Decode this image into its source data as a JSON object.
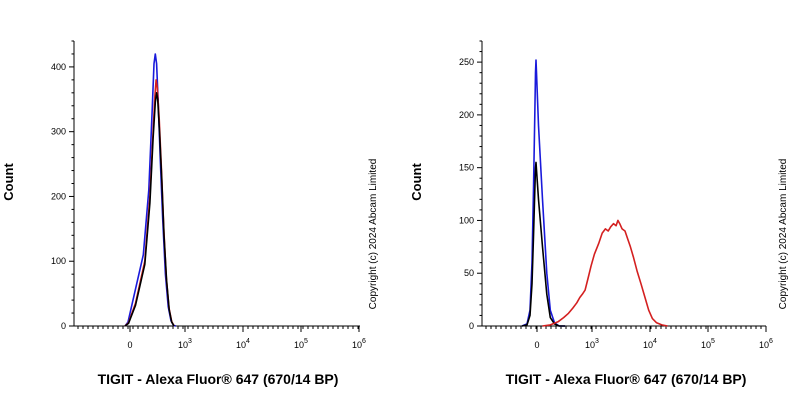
{
  "chart_data": [
    {
      "type": "line",
      "title": "",
      "xlabel": "TIGIT - Alexa Fluor® 647 (670/14 BP)",
      "ylabel": "Count",
      "copyright": "Copyright (c) 2024 Abcam Limited",
      "x_scale": "biexponential",
      "x_ticks": [
        {
          "value": 0,
          "base": "0",
          "exp": ""
        },
        {
          "value": 1000,
          "base": "10",
          "exp": "3"
        },
        {
          "value": 10000,
          "base": "10",
          "exp": "4"
        },
        {
          "value": 100000,
          "base": "10",
          "exp": "5"
        },
        {
          "value": 1000000,
          "base": "10",
          "exp": "6"
        }
      ],
      "y_ticks": [
        0,
        100,
        200,
        300,
        400
      ],
      "ylim": [
        0,
        440
      ],
      "series": [
        {
          "name": "blue",
          "color": "#1a1adb",
          "points": [
            [
              -100,
              0
            ],
            [
              -40,
              6
            ],
            [
              10,
              40
            ],
            [
              60,
              110
            ],
            [
              100,
              210
            ],
            [
              130,
              330
            ],
            [
              150,
              405
            ],
            [
              165,
              420
            ],
            [
              180,
              405
            ],
            [
              200,
              350
            ],
            [
              230,
              260
            ],
            [
              270,
              165
            ],
            [
              320,
              80
            ],
            [
              380,
              30
            ],
            [
              450,
              8
            ],
            [
              520,
              1
            ],
            [
              600,
              0
            ]
          ]
        },
        {
          "name": "red",
          "color": "#d42020",
          "points": [
            [
              -100,
              0
            ],
            [
              -30,
              5
            ],
            [
              20,
              35
            ],
            [
              70,
              100
            ],
            [
              110,
              200
            ],
            [
              140,
              300
            ],
            [
              160,
              355
            ],
            [
              175,
              380
            ],
            [
              190,
              368
            ],
            [
              215,
              320
            ],
            [
              250,
              240
            ],
            [
              290,
              150
            ],
            [
              340,
              75
            ],
            [
              400,
              28
            ],
            [
              470,
              7
            ],
            [
              540,
              0
            ]
          ]
        },
        {
          "name": "black",
          "color": "#000000",
          "points": [
            [
              -100,
              0
            ],
            [
              -30,
              4
            ],
            [
              20,
              32
            ],
            [
              70,
              95
            ],
            [
              110,
              190
            ],
            [
              140,
              290
            ],
            [
              165,
              345
            ],
            [
              180,
              360
            ],
            [
              195,
              350
            ],
            [
              220,
              300
            ],
            [
              255,
              225
            ],
            [
              295,
              140
            ],
            [
              345,
              70
            ],
            [
              405,
              25
            ],
            [
              470,
              6
            ],
            [
              540,
              0
            ]
          ]
        }
      ]
    },
    {
      "type": "line",
      "title": "",
      "xlabel": "TIGIT - Alexa Fluor® 647 (670/14 BP)",
      "ylabel": "Count",
      "copyright": "Copyright (c) 2024 Abcam Limited",
      "x_scale": "biexponential",
      "x_ticks": [
        {
          "value": 0,
          "base": "0",
          "exp": ""
        },
        {
          "value": 1000,
          "base": "10",
          "exp": "3"
        },
        {
          "value": 10000,
          "base": "10",
          "exp": "4"
        },
        {
          "value": 100000,
          "base": "10",
          "exp": "5"
        },
        {
          "value": 1000000,
          "base": "10",
          "exp": "6"
        }
      ],
      "y_ticks": [
        0,
        50,
        100,
        150,
        200,
        250
      ],
      "ylim": [
        0,
        270
      ],
      "series": [
        {
          "name": "blue",
          "color": "#1a1adb",
          "points": [
            [
              -300,
              0
            ],
            [
              -200,
              2
            ],
            [
              -140,
              15
            ],
            [
              -100,
              60
            ],
            [
              -70,
              130
            ],
            [
              -45,
              200
            ],
            [
              -30,
              240
            ],
            [
              -20,
              252
            ],
            [
              -10,
              240
            ],
            [
              5,
              190
            ],
            [
              20,
              120
            ],
            [
              40,
              50
            ],
            [
              60,
              15
            ],
            [
              90,
              3
            ],
            [
              130,
              0
            ],
            [
              200,
              0
            ]
          ]
        },
        {
          "name": "black",
          "color": "#000000",
          "points": [
            [
              -300,
              0
            ],
            [
              -200,
              1
            ],
            [
              -140,
              10
            ],
            [
              -100,
              40
            ],
            [
              -70,
              85
            ],
            [
              -45,
              128
            ],
            [
              -30,
              150
            ],
            [
              -20,
              155
            ],
            [
              -10,
              148
            ],
            [
              5,
              120
            ],
            [
              20,
              75
            ],
            [
              40,
              30
            ],
            [
              60,
              8
            ],
            [
              90,
              2
            ],
            [
              130,
              0
            ],
            [
              200,
              0
            ]
          ]
        },
        {
          "name": "red",
          "color": "#d42020",
          "points": [
            [
              20,
              0
            ],
            [
              60,
              1
            ],
            [
              120,
              4
            ],
            [
              180,
              8
            ],
            [
              250,
              12
            ],
            [
              330,
              17
            ],
            [
              420,
              22
            ],
            [
              500,
              27
            ],
            [
              580,
              30
            ],
            [
              680,
              34
            ],
            [
              800,
              45
            ],
            [
              950,
              57
            ],
            [
              1100,
              68
            ],
            [
              1300,
              78
            ],
            [
              1500,
              88
            ],
            [
              1700,
              92
            ],
            [
              1900,
              90
            ],
            [
              2100,
              94
            ],
            [
              2350,
              97
            ],
            [
              2600,
              95
            ],
            [
              2800,
              100
            ],
            [
              3000,
              97
            ],
            [
              3300,
              92
            ],
            [
              3700,
              90
            ],
            [
              4100,
              83
            ],
            [
              4600,
              75
            ],
            [
              5200,
              65
            ],
            [
              6000,
              52
            ],
            [
              7000,
              40
            ],
            [
              8200,
              27
            ],
            [
              9500,
              15
            ],
            [
              11000,
              7
            ],
            [
              13000,
              3
            ],
            [
              16000,
              1
            ],
            [
              20000,
              0
            ]
          ]
        }
      ]
    }
  ]
}
